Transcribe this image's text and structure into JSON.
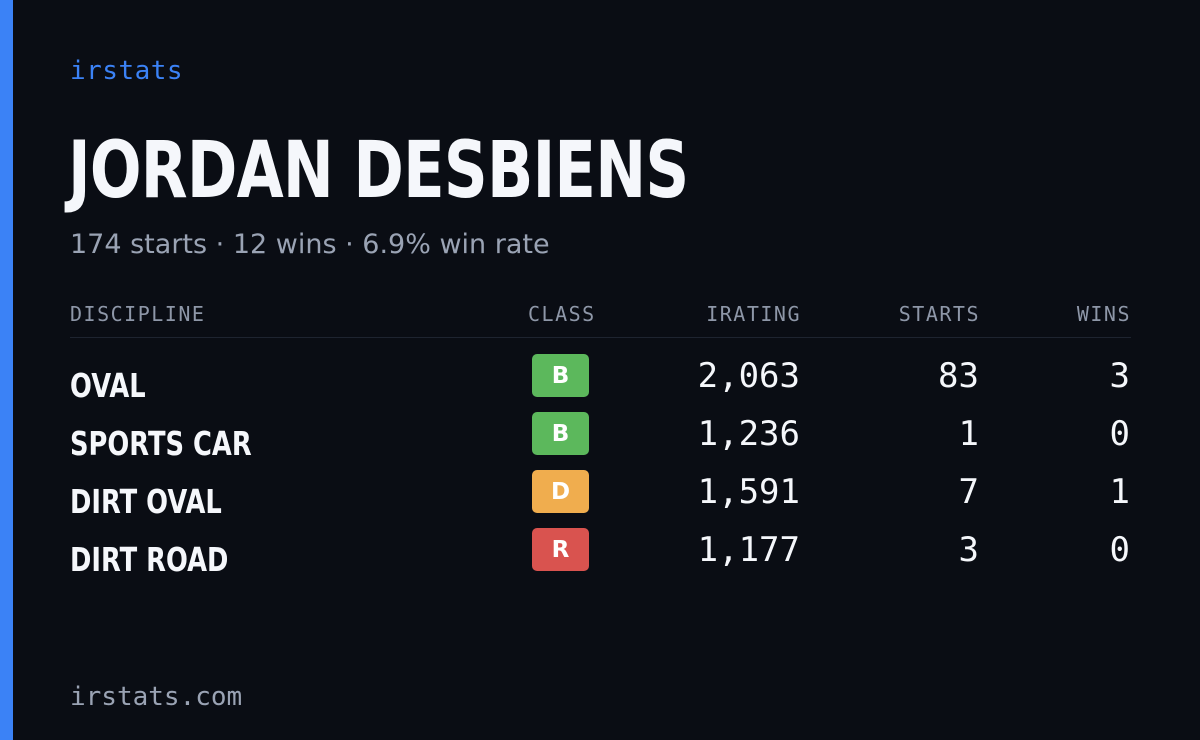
{
  "brand": "irstats",
  "driver": {
    "name": "JORDAN DESBIENS",
    "summary": "174 starts · 12 wins · 6.9% win rate"
  },
  "table": {
    "headers": {
      "discipline": "DISCIPLINE",
      "class": "CLASS",
      "irating": "IRATING",
      "starts": "STARTS",
      "wins": "WINS"
    },
    "rows": [
      {
        "discipline": "OVAL",
        "class": "B",
        "class_color": "#5cb85c",
        "irating": "2,063",
        "starts": "83",
        "wins": "3"
      },
      {
        "discipline": "SPORTS CAR",
        "class": "B",
        "class_color": "#5cb85c",
        "irating": "1,236",
        "starts": "1",
        "wins": "0"
      },
      {
        "discipline": "DIRT OVAL",
        "class": "D",
        "class_color": "#f0ad4e",
        "irating": "1,591",
        "starts": "7",
        "wins": "1"
      },
      {
        "discipline": "DIRT ROAD",
        "class": "R",
        "class_color": "#d9534f",
        "irating": "1,177",
        "starts": "3",
        "wins": "0"
      }
    ]
  },
  "footer": "irstats.com",
  "colors": {
    "accent": "#3b82f6",
    "background": "#0a0d14"
  }
}
